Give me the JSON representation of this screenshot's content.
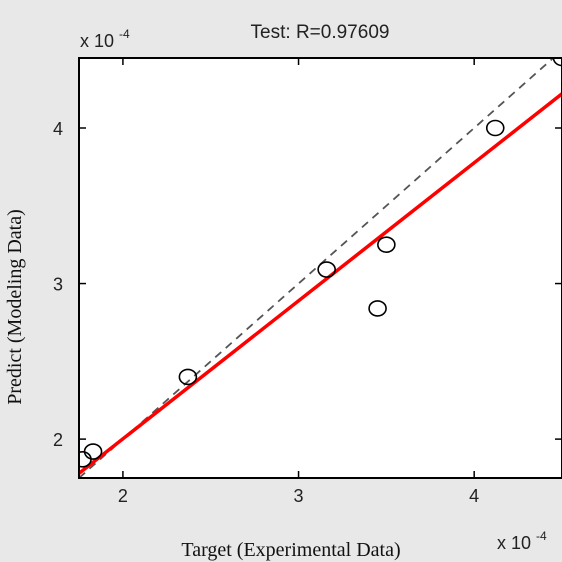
{
  "chart_data": {
    "type": "scatter",
    "title": "Test: R=0.97609",
    "xlabel": "Target (Experimental Data)",
    "ylabel": "Predict (Modeling Data)",
    "x_multiplier_label": "x 10",
    "y_multiplier_label": "x 10",
    "multiplier_exponent": "-4",
    "xlim": [
      1.75,
      4.5
    ],
    "ylim": [
      1.75,
      4.45
    ],
    "x_ticks": [
      2,
      3,
      4
    ],
    "y_ticks": [
      2,
      3,
      4
    ],
    "x_tick_labels": [
      "2",
      "3",
      "4"
    ],
    "y_tick_labels": [
      "2",
      "3",
      "4"
    ],
    "grid": false,
    "series": [
      {
        "kind": "points",
        "marker": "circle-open",
        "color": "#000000",
        "x": [
          1.77,
          1.83,
          2.37,
          3.16,
          3.45,
          3.5,
          4.12,
          4.5
        ],
        "y": [
          1.87,
          1.92,
          2.4,
          3.09,
          2.84,
          3.25,
          4.0,
          4.45
        ]
      },
      {
        "kind": "fit-line",
        "color": "#ff0000",
        "x": [
          1.75,
          4.5
        ],
        "y": [
          1.78,
          4.22
        ]
      },
      {
        "kind": "identity-line",
        "style": "dashed",
        "color": "#555555",
        "x": [
          1.75,
          4.5
        ],
        "y": [
          1.75,
          4.5
        ]
      }
    ]
  }
}
